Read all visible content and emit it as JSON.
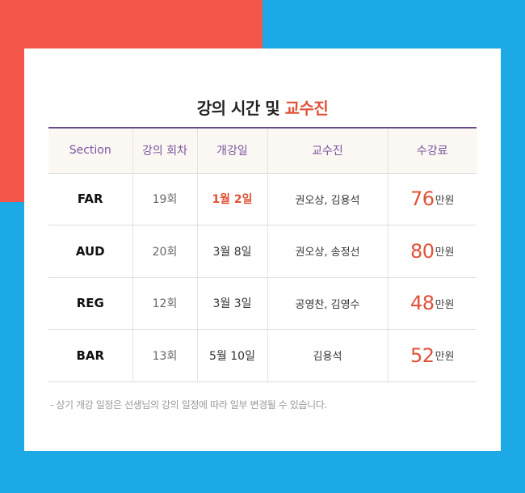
{
  "title": {
    "main": "강의 시간 및 ",
    "accent": "교수진"
  },
  "table": {
    "headers": [
      "Section",
      "강의 회차",
      "개강일",
      "교수진",
      "수강료"
    ],
    "rows": [
      {
        "section": "FAR",
        "sessions": "19회",
        "start": "1월 2일",
        "professors": "권오상, 김용석",
        "price": "76",
        "unit": "만원"
      },
      {
        "section": "AUD",
        "sessions": "20회",
        "start": "3월 8일",
        "professors": "권오상, 송정선",
        "price": "80",
        "unit": "만원"
      },
      {
        "section": "REG",
        "sessions": "12회",
        "start": "3월 3일",
        "professors": "공영찬, 김영수",
        "price": "48",
        "unit": "만원"
      },
      {
        "section": "BAR",
        "sessions": "13회",
        "start": "5월 10일",
        "professors": "김용석",
        "price": "52",
        "unit": "만원"
      }
    ]
  },
  "note": "- 상기 개강 일정은 선생님의 강의 일정에 따라 일부 변경될 수 있습니다.",
  "colors": {
    "background_blue": "#1da8e6",
    "background_red": "#f4574a",
    "accent": "#e05238",
    "header_text": "#7a55a0",
    "header_rule": "#6b4a8a"
  }
}
